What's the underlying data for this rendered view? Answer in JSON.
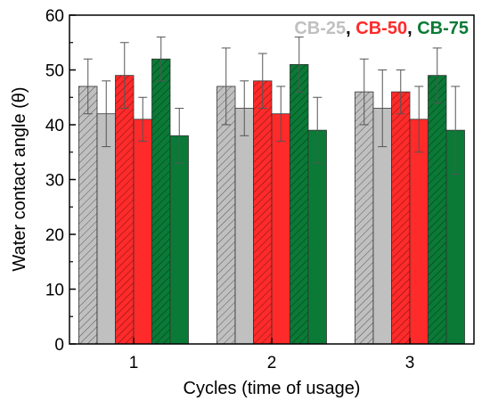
{
  "chart_data": {
    "type": "bar",
    "title": "",
    "xlabel": "Cycles (time of usage)",
    "ylabel": "Water contact angle (θ)",
    "ylim": [
      0,
      60
    ],
    "yticks": [
      0,
      10,
      20,
      30,
      40,
      50,
      60
    ],
    "categories": [
      "1",
      "2",
      "3"
    ],
    "grid": false,
    "legend": {
      "placement": "top-right",
      "entries": [
        {
          "text": "CB-25",
          "color": "#c0c0c0"
        },
        {
          "text": ", ",
          "color": "#000000"
        },
        {
          "text": "CB-50",
          "color": "#ff2a2a"
        },
        {
          "text": ", ",
          "color": "#000000"
        },
        {
          "text": "CB-75",
          "color": "#0a7a36"
        }
      ]
    },
    "series": [
      {
        "color": "#c0c0c0",
        "hatched": true,
        "values": [
          47,
          47,
          46
        ],
        "errors": [
          5,
          7,
          6
        ]
      },
      {
        "color": "#c0c0c0",
        "hatched": false,
        "values": [
          42,
          43,
          43
        ],
        "errors": [
          6,
          5,
          7
        ]
      },
      {
        "color": "#ff2a2a",
        "hatched": true,
        "values": [
          49,
          48,
          46
        ],
        "errors": [
          6,
          5,
          4
        ]
      },
      {
        "color": "#ff2a2a",
        "hatched": false,
        "values": [
          41,
          42,
          41
        ],
        "errors": [
          4,
          5,
          6
        ]
      },
      {
        "color": "#0a7a36",
        "hatched": true,
        "values": [
          52,
          51,
          49
        ],
        "errors": [
          4,
          5,
          5
        ]
      },
      {
        "color": "#0a7a36",
        "hatched": false,
        "values": [
          38,
          39,
          39
        ],
        "errors": [
          5,
          6,
          8
        ]
      }
    ]
  }
}
